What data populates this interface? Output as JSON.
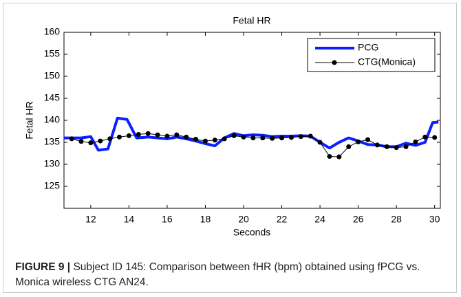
{
  "chart_data": {
    "type": "line",
    "title": "Fetal HR",
    "xlabel": "Seconds",
    "ylabel": "Fetal HR",
    "xlim": [
      10.6,
      30.3
    ],
    "xticks": [
      12,
      14,
      16,
      18,
      20,
      22,
      24,
      26,
      28,
      30
    ],
    "ylim": [
      120,
      160
    ],
    "yticks": [
      125,
      130,
      135,
      140,
      145,
      150,
      155,
      160
    ],
    "legend": "upper right",
    "series": [
      {
        "name": "PCG",
        "color": "#0a1eff",
        "markers": false,
        "x": [
          10.6,
          11.5,
          12,
          12.4,
          12.9,
          13.4,
          13.9,
          14.4,
          15,
          16,
          16.5,
          17,
          17.5,
          18,
          18.5,
          19,
          19.5,
          20,
          20.5,
          21,
          21.5,
          22,
          22.5,
          23,
          23.5,
          24,
          24.5,
          25,
          25.5,
          26,
          26.5,
          27,
          27.5,
          28,
          28.5,
          29,
          29.5,
          29.9,
          30.2
        ],
        "values": [
          136,
          136,
          136.3,
          133.2,
          133.5,
          140.5,
          140.2,
          136,
          136.2,
          135.8,
          136.2,
          135.8,
          135.3,
          134.7,
          134.2,
          136,
          137,
          136.5,
          136.7,
          136.6,
          136.3,
          136.4,
          136.4,
          136.5,
          136.4,
          135,
          133.7,
          135,
          136,
          135.3,
          134.5,
          134.4,
          134,
          134,
          134.8,
          134.3,
          135,
          139.5,
          139.6
        ]
      },
      {
        "name": "CTG(Monica)",
        "color": "#000000",
        "markers": true,
        "x": [
          11,
          11.5,
          12,
          12.5,
          13,
          13.5,
          14,
          14.5,
          15,
          15.5,
          16,
          16.5,
          17,
          17.5,
          18,
          18.5,
          19,
          19.5,
          20,
          20.5,
          21,
          21.5,
          22,
          22.5,
          23,
          23.5,
          24,
          24.5,
          25,
          25.5,
          26,
          26.5,
          27,
          27.5,
          28,
          28.5,
          29,
          29.5,
          30
        ],
        "values": [
          135.8,
          135.2,
          134.9,
          135.3,
          135.8,
          136.2,
          136.5,
          136.8,
          137,
          136.7,
          136.4,
          136.7,
          136.2,
          135.7,
          135.3,
          135.5,
          135.8,
          136.5,
          136.2,
          136,
          136,
          135.9,
          136,
          136.1,
          136.3,
          136.4,
          135,
          131.8,
          131.7,
          134,
          135.1,
          135.6,
          134.4,
          134,
          133.8,
          134,
          135.1,
          136.2,
          136.1
        ]
      }
    ]
  },
  "caption": {
    "label": "FIGURE 9 |",
    "text": "Subject ID 145: Comparison between fHR (bpm) obtained using fPCG vs. Monica wireless CTG AN24."
  }
}
